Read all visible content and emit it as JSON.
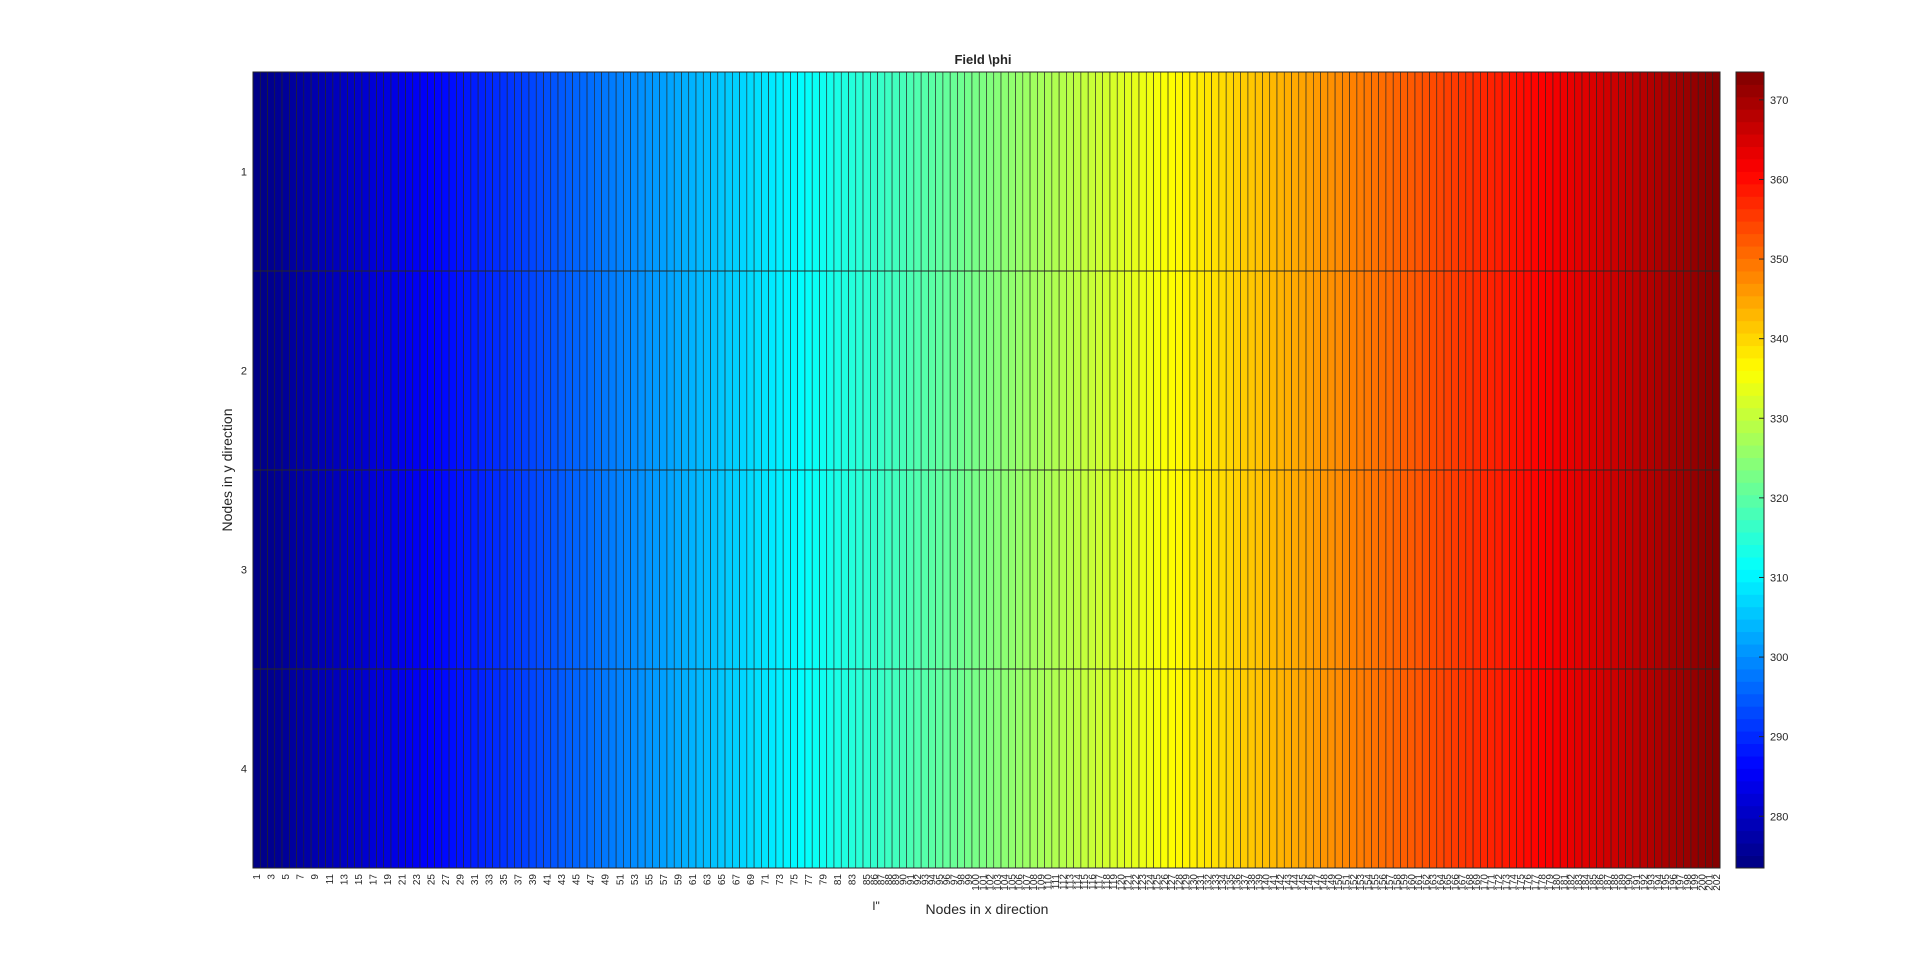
{
  "chart_data": {
    "type": "heatmap",
    "title": "Field \\phi",
    "xlabel": "Nodes in x direction",
    "ylabel": "Nodes in y direction",
    "x_range": [
      1,
      202
    ],
    "y_tick_labels": [
      "1",
      "2",
      "3",
      "4"
    ],
    "value_at_x1": 274,
    "value_at_x202": 373,
    "colormap": "jet",
    "colorbar": {
      "position": "right",
      "range": [
        273.5,
        373.5
      ],
      "ticks": [
        280,
        290,
        300,
        310,
        320,
        330,
        340,
        350,
        360,
        370
      ],
      "tick_labels": [
        "280",
        "290",
        "300",
        "310",
        "320",
        "330",
        "340",
        "350",
        "360",
        "370"
      ]
    },
    "grid": true,
    "stray_label": "I\""
  }
}
